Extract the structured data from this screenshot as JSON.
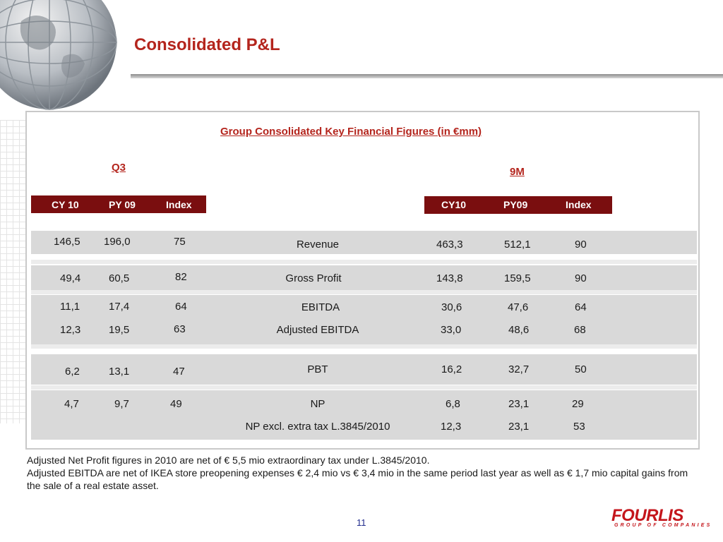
{
  "slide": {
    "title": "Consolidated P&L",
    "panel_title": "Group Consolidated Key Financial Figures (in €mm)",
    "page_number": "11"
  },
  "q3": {
    "label": "Q3",
    "headers": [
      "CY 10",
      "PY 09",
      "Index"
    ]
  },
  "nine_m": {
    "label": "9M",
    "headers": [
      "CY10",
      "PY09",
      "Index"
    ]
  },
  "rows": [
    {
      "label": "Revenue",
      "q3": [
        "146,5",
        "196,0",
        "75"
      ],
      "nine_m": [
        "463,3",
        "512,1",
        "90"
      ]
    },
    {
      "label": "Gross Profit",
      "q3": [
        "49,4",
        "60,5",
        "82"
      ],
      "nine_m": [
        "143,8",
        "159,5",
        "90"
      ]
    },
    {
      "label": "EBITDA",
      "q3": [
        "11,1",
        "17,4",
        "64"
      ],
      "nine_m": [
        "30,6",
        "47,6",
        "64"
      ]
    },
    {
      "label": "Adjusted EBITDA",
      "q3": [
        "12,3",
        "19,5",
        "63"
      ],
      "nine_m": [
        "33,0",
        "48,6",
        "68"
      ]
    },
    {
      "label": "PBT",
      "q3": [
        "6,2",
        "13,1",
        "47"
      ],
      "nine_m": [
        "16,2",
        "32,7",
        "50"
      ]
    },
    {
      "label": "NP",
      "q3": [
        "4,7",
        "9,7",
        "49"
      ],
      "nine_m": [
        "6,8",
        "23,1",
        "29"
      ]
    },
    {
      "label": "NP excl. extra tax L.3845/2010",
      "q3": [
        "",
        "",
        ""
      ],
      "nine_m": [
        "12,3",
        "23,1",
        "53"
      ]
    }
  ],
  "notes": [
    "Adjusted Net Profit figures in 2010 are net of € 5,5 mio extraordinary tax under L.3845/2010.",
    "Adjusted EBITDA are net of IKEA store preopening expenses € 2,4 mio vs € 3,4 mio in the same period last year as well as € 1,7 mio capital gains from the sale of a real estate asset."
  ],
  "logo": {
    "name": "FOURLIS",
    "tagline": "GROUP OF COMPANIES"
  },
  "colors": {
    "accent": "#b4251d",
    "header_bg": "#7a0e0f",
    "band": "#d9d9d9"
  }
}
